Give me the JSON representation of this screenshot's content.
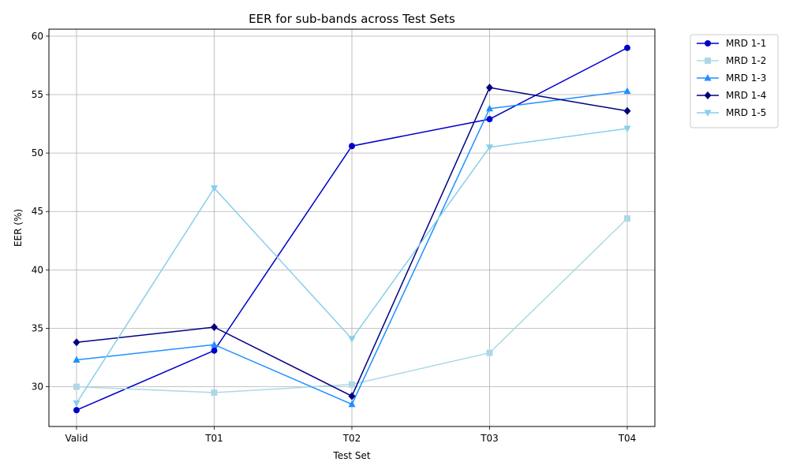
{
  "chart_data": {
    "type": "line",
    "title": "EER for sub-bands across Test Sets",
    "xlabel": "Test Set",
    "ylabel": "EER (%)",
    "categories": [
      "Valid",
      "T01",
      "T02",
      "T03",
      "T04"
    ],
    "ylim": [
      26.6,
      60.6
    ],
    "yticks": [
      30,
      35,
      40,
      45,
      50,
      55,
      60
    ],
    "grid": true,
    "legend_position": "outside-top-right",
    "series": [
      {
        "name": "MRD 1-1",
        "color": "#0000cd",
        "marker": "circle",
        "values": [
          28.0,
          33.1,
          50.6,
          52.9,
          59.0
        ]
      },
      {
        "name": "MRD 1-2",
        "color": "#add8e6",
        "marker": "square",
        "values": [
          30.0,
          29.5,
          30.2,
          32.9,
          44.4
        ]
      },
      {
        "name": "MRD 1-3",
        "color": "#1e90ff",
        "marker": "triangle-up",
        "values": [
          32.3,
          33.6,
          28.5,
          53.8,
          55.3
        ]
      },
      {
        "name": "MRD 1-4",
        "color": "#000080",
        "marker": "diamond",
        "values": [
          33.8,
          35.1,
          29.2,
          55.6,
          53.6
        ]
      },
      {
        "name": "MRD 1-5",
        "color": "#87ceeb",
        "marker": "triangle-down",
        "values": [
          28.6,
          47.0,
          34.1,
          50.5,
          52.1
        ]
      }
    ]
  }
}
